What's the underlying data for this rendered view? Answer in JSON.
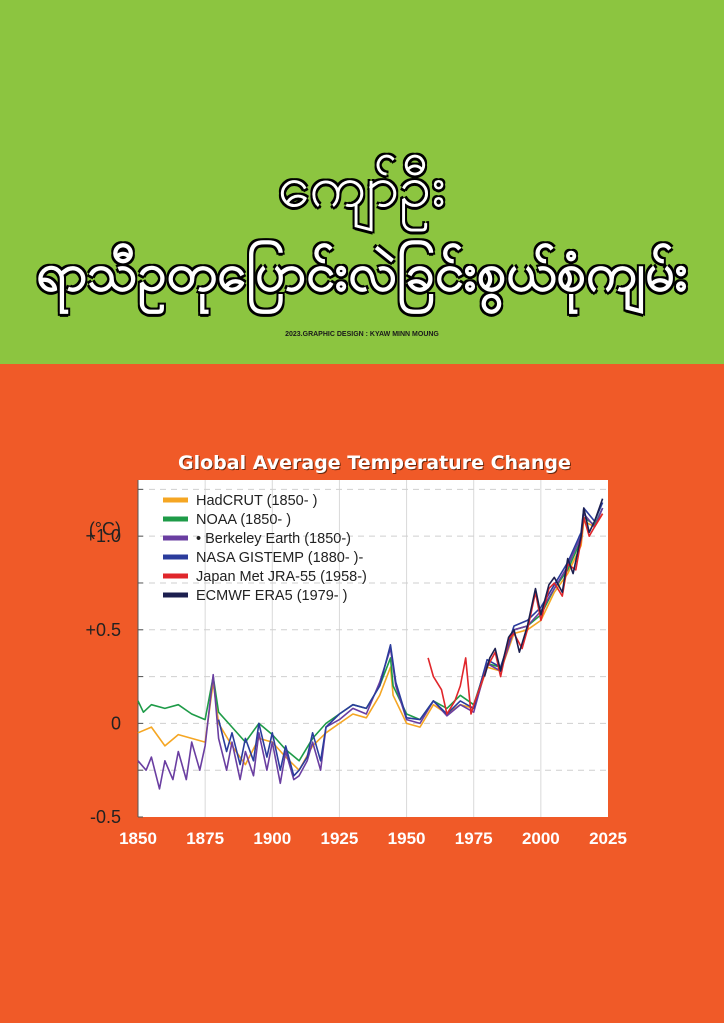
{
  "header": {
    "title_line1": "ကျော်ဦး",
    "title_line2": "ရာသီဥတုပြောင်းလဲခြင်းစွယ်စုံကျမ်း",
    "credit": "2023.GRAPHIC DESIGN : KYAW MINN MOUNG"
  },
  "colors": {
    "top_band": "#8cc540",
    "bottom_band": "#f05a28",
    "plot_bg": "#ffffff"
  },
  "chart_data": {
    "type": "line",
    "title": "Global Average Temperature Change",
    "unit_label": "(°C)",
    "xlabel": "",
    "ylabel": "",
    "xlim": [
      1850,
      2025
    ],
    "ylim": [
      -0.5,
      1.3
    ],
    "x_ticks": [
      "1850",
      "1875",
      "1900",
      "1925",
      "1950",
      "1975",
      "2000",
      "2025"
    ],
    "y_ticks": [
      "-0.5",
      "0",
      "+0.5",
      "+1.0"
    ],
    "grid": true,
    "legend_position": "top-left",
    "series": [
      {
        "name": "HadCRUT (1850- )",
        "color": "#f5a623",
        "x": [
          1850,
          1855,
          1860,
          1865,
          1870,
          1875,
          1878,
          1880,
          1885,
          1890,
          1895,
          1900,
          1905,
          1910,
          1915,
          1920,
          1925,
          1930,
          1935,
          1940,
          1944,
          1945,
          1950,
          1955,
          1960,
          1965,
          1970,
          1975,
          1980,
          1985,
          1990,
          1995,
          2000,
          2005,
          2010,
          2015,
          2016,
          2020,
          2023
        ],
        "y": [
          -0.05,
          -0.02,
          -0.12,
          -0.06,
          -0.08,
          -0.1,
          0.22,
          0.0,
          -0.12,
          -0.22,
          -0.08,
          -0.1,
          -0.18,
          -0.25,
          -0.12,
          -0.05,
          0.0,
          0.05,
          0.03,
          0.15,
          0.3,
          0.15,
          0.0,
          -0.02,
          0.1,
          0.05,
          0.1,
          0.08,
          0.3,
          0.28,
          0.48,
          0.5,
          0.55,
          0.7,
          0.8,
          0.95,
          1.08,
          1.05,
          1.12
        ]
      },
      {
        "name": "NOAA (1850- )",
        "color": "#1e9b48",
        "x": [
          1850,
          1852,
          1855,
          1860,
          1865,
          1870,
          1875,
          1878,
          1880,
          1885,
          1890,
          1895,
          1900,
          1905,
          1910,
          1915,
          1920,
          1925,
          1930,
          1935,
          1940,
          1944,
          1945,
          1950,
          1955,
          1960,
          1965,
          1970,
          1975,
          1980,
          1985,
          1990,
          1995,
          2000,
          2005,
          2010,
          2015,
          2016,
          2020,
          2023
        ],
        "y": [
          0.12,
          0.06,
          0.1,
          0.08,
          0.1,
          0.05,
          0.02,
          0.25,
          0.06,
          -0.02,
          -0.1,
          0.0,
          -0.06,
          -0.14,
          -0.2,
          -0.08,
          0.0,
          0.05,
          0.1,
          0.08,
          0.2,
          0.35,
          0.2,
          0.05,
          0.02,
          0.12,
          0.08,
          0.15,
          0.1,
          0.32,
          0.3,
          0.5,
          0.52,
          0.58,
          0.72,
          0.82,
          0.98,
          1.1,
          1.06,
          1.15
        ]
      },
      {
        "name": "• Berkeley Earth (1850-)",
        "color": "#6a3ea1",
        "x": [
          1850,
          1853,
          1855,
          1858,
          1860,
          1863,
          1865,
          1868,
          1870,
          1873,
          1875,
          1878,
          1880,
          1883,
          1885,
          1888,
          1890,
          1893,
          1895,
          1898,
          1900,
          1903,
          1905,
          1908,
          1910,
          1913,
          1915,
          1918,
          1920,
          1925,
          1930,
          1935,
          1940,
          1944,
          1946,
          1950,
          1955,
          1960,
          1965,
          1970,
          1975,
          1980,
          1985,
          1990,
          1995,
          2000,
          2005,
          2010,
          2015,
          2016,
          2020,
          2023
        ],
        "y": [
          -0.2,
          -0.25,
          -0.18,
          -0.35,
          -0.2,
          -0.3,
          -0.15,
          -0.3,
          -0.1,
          -0.25,
          -0.12,
          0.26,
          -0.08,
          -0.25,
          -0.1,
          -0.3,
          -0.15,
          -0.28,
          -0.05,
          -0.25,
          -0.1,
          -0.32,
          -0.15,
          -0.3,
          -0.28,
          -0.2,
          -0.1,
          -0.25,
          -0.02,
          0.02,
          0.08,
          0.05,
          0.22,
          0.4,
          0.2,
          0.02,
          0.0,
          0.12,
          0.04,
          0.1,
          0.06,
          0.32,
          0.28,
          0.5,
          0.52,
          0.6,
          0.72,
          0.84,
          1.0,
          1.12,
          1.05,
          1.15
        ]
      },
      {
        "name": "NASA GISTEMP (1880- )-",
        "color": "#2b3c9c",
        "x": [
          1880,
          1883,
          1885,
          1888,
          1890,
          1893,
          1895,
          1898,
          1900,
          1903,
          1905,
          1908,
          1910,
          1913,
          1915,
          1918,
          1920,
          1925,
          1930,
          1935,
          1940,
          1944,
          1946,
          1950,
          1955,
          1960,
          1965,
          1970,
          1975,
          1980,
          1985,
          1990,
          1995,
          2000,
          2005,
          2010,
          2015,
          2016,
          2020,
          2023
        ],
        "y": [
          0.02,
          -0.15,
          -0.05,
          -0.22,
          -0.08,
          -0.2,
          0.0,
          -0.18,
          -0.05,
          -0.25,
          -0.12,
          -0.28,
          -0.25,
          -0.18,
          -0.05,
          -0.2,
          -0.02,
          0.05,
          0.1,
          0.08,
          0.2,
          0.42,
          0.22,
          0.03,
          0.02,
          0.12,
          0.05,
          0.12,
          0.08,
          0.34,
          0.3,
          0.52,
          0.55,
          0.62,
          0.74,
          0.86,
          1.02,
          1.15,
          1.08,
          1.18
        ]
      },
      {
        "name": "Japan Met JRA-55 (1958-)",
        "color": "#e0262b",
        "x": [
          1958,
          1960,
          1963,
          1965,
          1968,
          1970,
          1972,
          1974,
          1975,
          1978,
          1980,
          1983,
          1985,
          1988,
          1990,
          1993,
          1995,
          1998,
          2000,
          2003,
          2005,
          2008,
          2010,
          2013,
          2015,
          2016,
          2018,
          2020,
          2023
        ],
        "y": [
          0.35,
          0.25,
          0.18,
          0.05,
          0.12,
          0.2,
          0.35,
          0.05,
          0.1,
          0.22,
          0.3,
          0.38,
          0.25,
          0.45,
          0.48,
          0.4,
          0.5,
          0.7,
          0.55,
          0.72,
          0.75,
          0.68,
          0.85,
          0.82,
          0.98,
          1.1,
          1.0,
          1.05,
          1.12
        ]
      },
      {
        "name": "ECMWF ERA5 (1979- )",
        "color": "#1c1f4f",
        "x": [
          1979,
          1981,
          1983,
          1985,
          1988,
          1990,
          1992,
          1995,
          1998,
          2000,
          2003,
          2005,
          2008,
          2010,
          2012,
          2015,
          2016,
          2018,
          2020,
          2023
        ],
        "y": [
          0.25,
          0.35,
          0.4,
          0.28,
          0.46,
          0.5,
          0.38,
          0.52,
          0.72,
          0.58,
          0.74,
          0.78,
          0.7,
          0.88,
          0.8,
          1.0,
          1.15,
          1.02,
          1.08,
          1.2
        ]
      }
    ]
  }
}
